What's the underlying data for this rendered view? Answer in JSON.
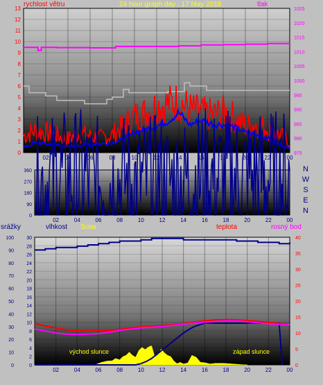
{
  "header": {
    "date_title": "24 hour graph day . 17 May 2018",
    "wind_label": "rychlost větru",
    "pressure_label": "tlak",
    "rain_label": "srážky",
    "humidity_label": "vlhkost",
    "solar_label": "Solar",
    "temperature_label": "teplota",
    "dewpoint_label": "rosný bod",
    "sunrise_label": "východ slunce",
    "sunset_label": "západ slunce"
  },
  "compass": [
    "N",
    "W",
    "S",
    "E",
    "N"
  ],
  "colors": {
    "wind_gust": "#ff0000",
    "wind_avg": "#0000ff",
    "wind_max": "#c0c0c0",
    "pressure": "#ff00ff",
    "direction": "#00008b",
    "humidity": "#00008b",
    "temperature": "#ff0000",
    "dewpoint": "#ff00ff",
    "rain": "#00008b",
    "solar": "#ffff00",
    "left_axis": "#ff0000",
    "right_axis_top": "#ff00ff",
    "right_axis_bottom": "#ff0000",
    "title": "#ffff00"
  },
  "chart_data": [
    {
      "type": "line",
      "x_ticks": [
        "02",
        "04",
        "06",
        "08",
        "10",
        "12",
        "14",
        "16",
        "18",
        "20",
        "22",
        "00"
      ],
      "y_left_ticks": [
        "0",
        "1",
        "2",
        "3",
        "4",
        "5",
        "6",
        "7",
        "8",
        "9",
        "10",
        "11",
        "12",
        "13"
      ],
      "y_left_range": [
        0,
        13
      ],
      "y_right_ticks": [
        "975",
        "980",
        "985",
        "990",
        "995",
        "1000",
        "1005",
        "1010",
        "1015",
        "1020",
        "1025"
      ],
      "y_right_range": [
        975,
        1025
      ],
      "series": [
        {
          "name": "rychlost větru",
          "kind": "gust",
          "x": [
            0,
            1,
            2,
            3,
            4,
            5,
            6,
            7,
            8,
            9,
            10,
            11,
            12,
            13,
            14,
            15,
            16,
            17,
            18,
            19,
            20,
            21,
            22,
            23,
            24
          ],
          "values": [
            1.5,
            2.0,
            1.8,
            1.6,
            1.2,
            1.8,
            1.5,
            1.3,
            1.6,
            2.4,
            3.3,
            3.6,
            4.2,
            4.4,
            4.6,
            3.9,
            3.6,
            3.4,
            3.6,
            3.2,
            2.4,
            2.6,
            2.2,
            1.6,
            1.0
          ]
        },
        {
          "kind": "average",
          "x": [
            0,
            1,
            2,
            3,
            4,
            5,
            6,
            7,
            8,
            9,
            10,
            11,
            12,
            13,
            14,
            15,
            16,
            17,
            18,
            19,
            20,
            21,
            22,
            23,
            24
          ],
          "values": [
            0.4,
            0.9,
            0.8,
            0.7,
            0.5,
            0.7,
            0.7,
            0.8,
            0.9,
            1.2,
            1.8,
            2.1,
            2.4,
            2.8,
            3.6,
            2.5,
            2.9,
            2.6,
            2.5,
            2.3,
            1.8,
            1.6,
            1.3,
            0.8,
            0.4
          ]
        },
        {
          "kind": "max",
          "x": [
            0,
            0.5,
            2,
            3,
            4,
            5,
            5.5,
            6,
            7,
            7.5,
            8,
            9,
            9.5,
            10,
            11,
            12,
            13,
            14,
            14.5,
            15,
            16,
            16.5,
            18,
            19,
            20,
            21,
            22,
            23,
            24
          ],
          "values": [
            6.0,
            5.4,
            5.1,
            4.7,
            4.7,
            4.7,
            4.4,
            4.4,
            4.4,
            4.8,
            5.0,
            5.7,
            5.4,
            5.4,
            5.4,
            5.4,
            5.5,
            5.5,
            6.3,
            6.0,
            6.0,
            5.6,
            5.6,
            5.6,
            5.6,
            5.6,
            5.6,
            5.6,
            5.6
          ]
        },
        {
          "name": "tlak",
          "kind": "pressure",
          "x": [
            0,
            1,
            1.3,
            1.6,
            2,
            3,
            4,
            5,
            6,
            7,
            8,
            8.3,
            10,
            12,
            13,
            14,
            16,
            18,
            20,
            22,
            24
          ],
          "values": [
            1011.5,
            1011.5,
            1010.4,
            1011.5,
            1011.5,
            1011.4,
            1011.4,
            1011.4,
            1011.3,
            1011.3,
            1011.3,
            1011.8,
            1011.8,
            1011.8,
            1011.8,
            1012.0,
            1012.3,
            1012.4,
            1012.6,
            1012.8,
            1013.0
          ]
        }
      ]
    },
    {
      "type": "scatter",
      "x_ticks": [
        "02",
        "04",
        "06",
        "08",
        "10",
        "12",
        "14",
        "16",
        "18",
        "20",
        "22",
        "00"
      ],
      "y_ticks": [
        "0",
        "90",
        "180",
        "270",
        "360"
      ],
      "y_range": [
        0,
        360
      ],
      "series": [
        {
          "kind": "direction",
          "x": [
            0,
            1,
            2,
            3,
            4,
            5,
            6,
            7,
            8,
            9,
            10,
            11,
            12,
            13,
            14,
            15,
            16,
            17,
            18,
            19,
            20,
            21,
            22,
            23,
            24
          ],
          "values": [
            260,
            270,
            280,
            285,
            290,
            280,
            265,
            270,
            275,
            270,
            260,
            270,
            270,
            260,
            265,
            290,
            295,
            285,
            290,
            285,
            280,
            290,
            295,
            280,
            300
          ]
        }
      ]
    },
    {
      "type": "line",
      "x_ticks": [
        "02",
        "04",
        "06",
        "08",
        "10",
        "12",
        "14",
        "16",
        "18",
        "20",
        "22",
        "00"
      ],
      "y_rain_ticks": [
        "0",
        "2",
        "4",
        "6",
        "8",
        "10",
        "12",
        "14",
        "16",
        "18",
        "20",
        "22",
        "24",
        "26",
        "28",
        "30"
      ],
      "y_rain_range": [
        0,
        30
      ],
      "y_humidity_ticks": [
        "0",
        "10",
        "20",
        "30",
        "40",
        "50",
        "60",
        "70",
        "80",
        "90",
        "100"
      ],
      "y_humidity_range": [
        0,
        100
      ],
      "y_temp_ticks": [
        "0",
        "5",
        "10",
        "15",
        "20",
        "25",
        "30",
        "35",
        "40"
      ],
      "y_temp_range": [
        0,
        40
      ],
      "series": [
        {
          "name": "vlhkost",
          "kind": "humidity",
          "x": [
            0,
            1,
            2,
            3,
            4,
            5,
            6,
            7,
            8,
            9,
            10,
            11,
            12,
            13,
            14,
            15,
            16,
            17,
            18,
            19,
            20,
            21,
            22,
            23,
            24
          ],
          "values": [
            90,
            91,
            92,
            92,
            93,
            94,
            95,
            96,
            97,
            97,
            98,
            99,
            99,
            99,
            98,
            98,
            98,
            98,
            98,
            97,
            97,
            96,
            96,
            95,
            96
          ]
        },
        {
          "name": "teplota",
          "kind": "temperature",
          "x": [
            0,
            1,
            2,
            3,
            4,
            5,
            6,
            7,
            8,
            9,
            10,
            11,
            12,
            13,
            14,
            15,
            16,
            17,
            18,
            19,
            20,
            21,
            22,
            23,
            24
          ],
          "values": [
            13.0,
            12.2,
            11.6,
            11.0,
            10.7,
            10.7,
            10.7,
            10.8,
            11.1,
            11.6,
            11.9,
            12.1,
            12.3,
            12.6,
            13.0,
            13.4,
            13.8,
            14.1,
            14.2,
            14.1,
            13.9,
            13.6,
            13.3,
            13.0,
            12.8
          ]
        },
        {
          "name": "rosný bod",
          "kind": "dewpoint",
          "x": [
            0,
            1,
            2,
            3,
            4,
            5,
            6,
            7,
            8,
            9,
            10,
            11,
            12,
            13,
            14,
            15,
            16,
            17,
            18,
            19,
            20,
            21,
            22,
            23,
            24
          ],
          "values": [
            11.2,
            10.6,
            10.0,
            9.6,
            9.5,
            9.6,
            9.8,
            10.2,
            10.8,
            11.2,
            11.6,
            11.8,
            12.0,
            12.4,
            12.8,
            13.1,
            13.4,
            13.6,
            13.8,
            13.8,
            13.5,
            13.2,
            12.9,
            12.7,
            12.6
          ]
        },
        {
          "name": "srážky",
          "kind": "rain",
          "x": [
            0,
            9.5,
            10,
            10.5,
            11,
            11.5,
            12,
            12.5,
            13,
            13.5,
            14,
            14.5,
            15,
            16,
            17,
            18,
            19,
            20,
            21,
            22,
            23,
            23.3
          ],
          "values": [
            0,
            0,
            0.3,
            0.8,
            1.5,
            2.5,
            3.5,
            4.5,
            5.5,
            6.5,
            7.5,
            8.3,
            9.0,
            9.8,
            9.8,
            9.8,
            9.8,
            9.8,
            9.8,
            9.8,
            9.8,
            0
          ]
        },
        {
          "name": "Solar",
          "kind": "solar",
          "x": [
            5.8,
            6.3,
            6.8,
            7.3,
            7.6,
            8.0,
            8.3,
            8.6,
            8.9,
            9.2,
            9.5,
            9.8,
            10.1,
            10.4,
            10.7,
            11.0,
            11.3,
            11.6,
            11.9,
            12.2,
            12.5,
            12.8,
            13.1,
            13.4,
            13.7,
            14.0,
            14.4,
            14.8,
            15.2,
            15.6,
            16.0,
            16.5,
            17.0,
            17.8,
            18.6,
            19.4,
            20.0
          ],
          "values": [
            0.2,
            0.8,
            1.2,
            1.3,
            2.0,
            1.6,
            2.6,
            3.0,
            4.0,
            3.0,
            2.4,
            4.5,
            5.5,
            4.8,
            5.6,
            6.0,
            2.5,
            3.2,
            5.0,
            3.8,
            3.0,
            2.6,
            1.2,
            0.4,
            0.8,
            0.3,
            0.6,
            3.0,
            2.4,
            0.8,
            0.7,
            0.3,
            0.5,
            0.5,
            0.3,
            0.1,
            0
          ]
        }
      ]
    }
  ]
}
